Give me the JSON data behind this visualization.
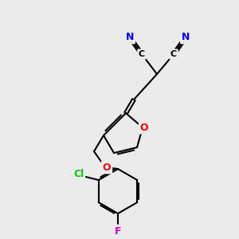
{
  "background_color": "#ebebeb",
  "bond_color": "#000000",
  "atom_colors": {
    "N": "#0000ff",
    "O": "#ff0000",
    "Cl": "#00cc00",
    "F": "#cc00cc",
    "C": "#000000"
  },
  "figsize": [
    3.0,
    3.0
  ],
  "dpi": 100
}
